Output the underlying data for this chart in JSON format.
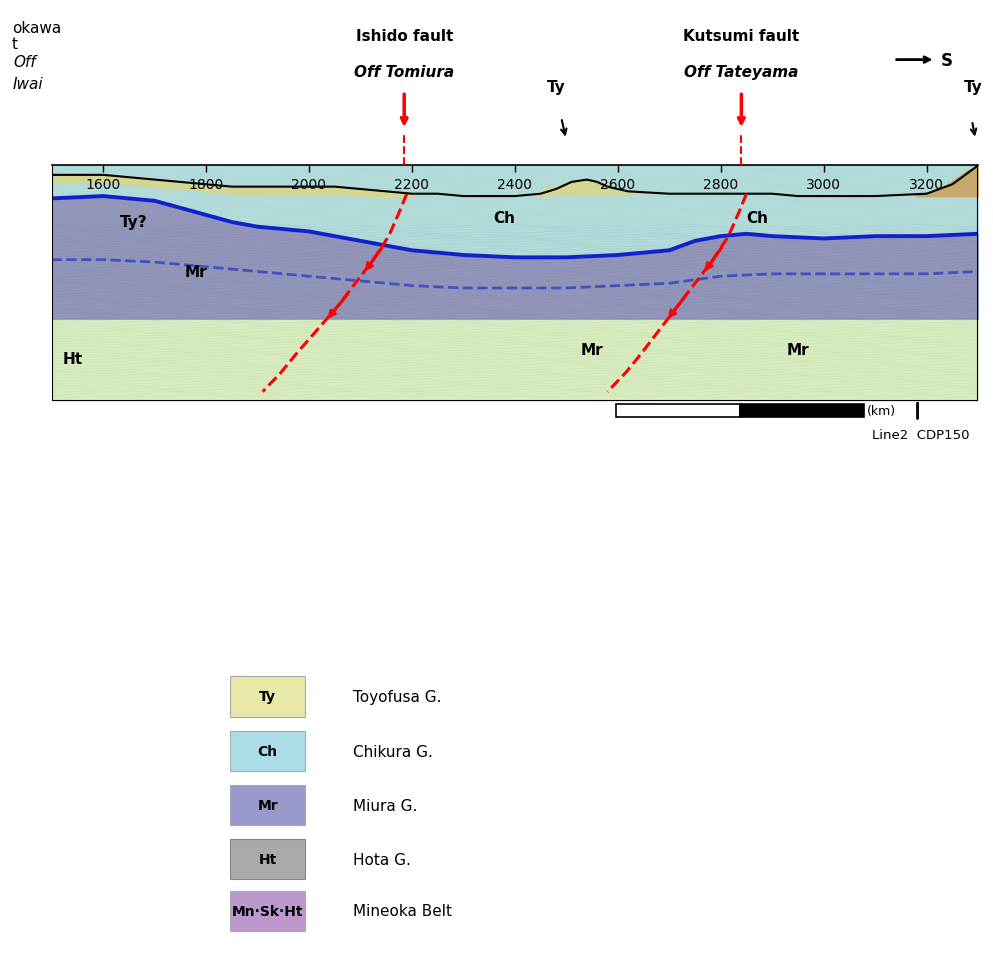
{
  "fig_width": 9.93,
  "fig_height": 9.62,
  "bg_color": "#ffffff",
  "tick_positions": [
    1600,
    1800,
    2000,
    2200,
    2400,
    2600,
    2800,
    3000,
    3200
  ],
  "xlim": [
    1500,
    3300
  ],
  "header_text1": "okawa",
  "header_text2": "t",
  "legend_items": [
    {
      "label": "Ty",
      "description": "Toyofusa G.",
      "facecolor": "#e8e8a8",
      "edgecolor": "#aaaaaa"
    },
    {
      "label": "Ch",
      "description": "Chikura G.",
      "facecolor": "#aadde8",
      "edgecolor": "#aaaaaa"
    },
    {
      "label": "Mr",
      "description": "Miura G.",
      "facecolor": "#9999cc",
      "edgecolor": "#aaaaaa"
    },
    {
      "label": "Ht",
      "description": "Hota G.",
      "facecolor": "#aaaaaa",
      "edgecolor": "#888888"
    },
    {
      "label": "Mn·Sk·Ht",
      "description": "Mineoka Belt",
      "facecolor": "#bb99cc",
      "edgecolor": "#aaaaaa"
    }
  ]
}
